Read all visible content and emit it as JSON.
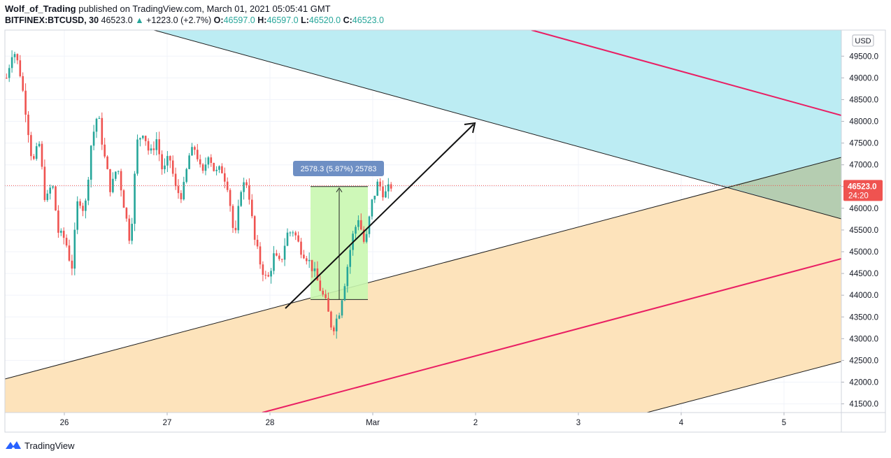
{
  "header": {
    "author": "Wolf_of_Trading",
    "published": "published on TradingView.com, March 01, 2021 05:05:41 GMT",
    "symbol": "BITFINEX:BTCUSD, 30",
    "last": "46523.0",
    "change": "+1223.0 (+2.7%)",
    "o_label": "O:",
    "o": "46597.0",
    "h_label": "H:",
    "h": "46597.0",
    "l_label": "L:",
    "l": "46520.0",
    "c_label": "C:",
    "c": "46523.0"
  },
  "footer": {
    "brand": "TradingView"
  },
  "colors": {
    "up": "#26a69a",
    "down": "#ef5350",
    "channel_fill": "#fde3bb",
    "cyan_fill": "#bcecf3",
    "overlap_fill": "#b5cdb1",
    "measure_fill": "#c9f7b0",
    "measure_label_bg": "#6e8fc4",
    "pink": "#e91e63",
    "price_badge": "#ef5350"
  },
  "chart_data": {
    "type": "candlestick",
    "currency": "USD",
    "ylim": [
      41300,
      50100
    ],
    "y_ticks": [
      "49500.0",
      "49000.0",
      "48500.0",
      "48000.0",
      "47500.0",
      "47000.0",
      "46500.0",
      "46000.0",
      "45500.0",
      "45000.0",
      "44500.0",
      "44000.0",
      "43500.0",
      "43000.0",
      "42500.0",
      "42000.0",
      "41500.0"
    ],
    "x_ticks": [
      "26",
      "27",
      "28",
      "Mar",
      "2",
      "3",
      "4",
      "5"
    ],
    "last_price": "46523.0",
    "countdown": "24:20",
    "measure_label": "2578.3 (5.87%) 25783",
    "measure": {
      "from": 43900,
      "to": 46500,
      "start": "Feb 28 12:00",
      "end": "Feb 28 23:30"
    },
    "ohlc_path": [
      49000,
      49700,
      49200,
      48200,
      47000,
      47500,
      46100,
      46600,
      45400,
      45300,
      44600,
      46300,
      45900,
      47500,
      48200,
      47200,
      46400,
      47000,
      46100,
      45200,
      47500,
      47800,
      47200,
      47600,
      46800,
      47200,
      46400,
      46300,
      47200,
      47400,
      46700,
      47300,
      46800,
      46900,
      46500,
      45200,
      46500,
      46600,
      45300,
      44700,
      44300,
      44900,
      44700,
      45400,
      45500,
      45100,
      44900,
      44600,
      44200,
      43800,
      43200,
      43600,
      44400,
      45300,
      45800,
      45100,
      46100,
      46600,
      46300,
      46523
    ]
  }
}
